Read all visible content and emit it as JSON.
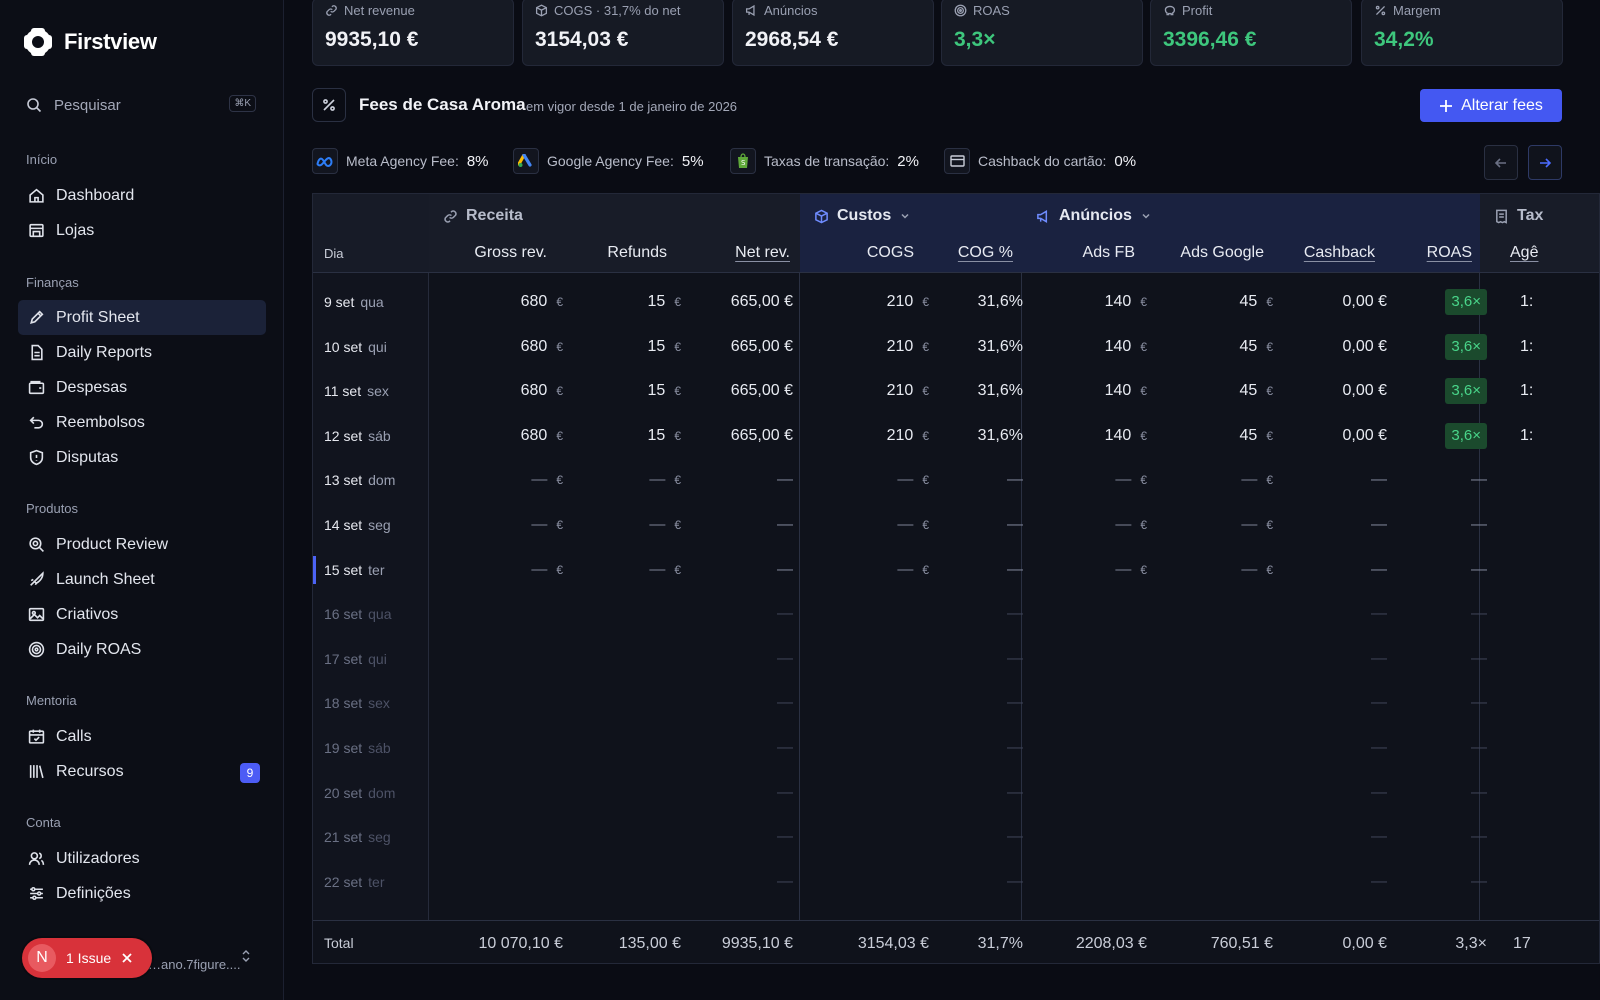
{
  "app": {
    "name": "Firstview"
  },
  "sidebar": {
    "search": {
      "label": "Pesquisar",
      "shortcut": "⌘K"
    },
    "sections": {
      "inicio": "Início",
      "financas": "Finanças",
      "produtos": "Produtos",
      "mentoria": "Mentoria",
      "conta": "Conta"
    },
    "items": {
      "dashboard": "Dashboard",
      "lojas": "Lojas",
      "profit_sheet": "Profit Sheet",
      "daily_reports": "Daily Reports",
      "despesas": "Despesas",
      "reembolsos": "Reembolsos",
      "disputas": "Disputas",
      "product_review": "Product Review",
      "launch_sheet": "Launch Sheet",
      "criativos": "Criativos",
      "daily_roas": "Daily ROAS",
      "calls": "Calls",
      "recursos": "Recursos",
      "recursos_badge": "9",
      "utilizadores": "Utilizadores",
      "definicoes": "Definições"
    },
    "issue": {
      "avatar": "N",
      "label": "1 Issue"
    },
    "user_email": "…ano.7figure...."
  },
  "kpis": [
    {
      "label": "Net revenue",
      "value": "9935,10 €"
    },
    {
      "label": "COGS · 31,7% do net",
      "value": "3154,03 €"
    },
    {
      "label": "Anúncios",
      "value": "2968,54 €"
    },
    {
      "label": "ROAS",
      "value": "3,3×"
    },
    {
      "label": "Profit",
      "value": "3396,46 €"
    },
    {
      "label": "Margem",
      "value": "34,2%"
    }
  ],
  "fees": {
    "title": "Fees de Casa Aroma",
    "subtitle": "em vigor desde 1 de janeiro de 2026",
    "button": "Alterar fees",
    "chips": [
      {
        "label": "Meta Agency Fee:",
        "value": "8%"
      },
      {
        "label": "Google Agency Fee:",
        "value": "5%"
      },
      {
        "label": "Taxas de transação:",
        "value": "2%"
      },
      {
        "label": "Cashback do cartão:",
        "value": "0%"
      }
    ]
  },
  "table": {
    "groups": {
      "receita": "Receita",
      "custos": "Custos",
      "anuncios": "Anúncios",
      "tax": "Tax"
    },
    "columns": {
      "dia": "Dia",
      "gross": "Gross rev.",
      "refunds": "Refunds",
      "net": "Net rev.",
      "cogs": "COGS",
      "cog_pct": "COG %",
      "ads_fb": "Ads FB",
      "ads_google": "Ads Google",
      "cashback": "Cashback",
      "roas": "ROAS",
      "agencia": "Agê"
    },
    "currency": "€",
    "dash": "—",
    "rows": [
      {
        "day": "9 set",
        "wd": "qua",
        "gross": "680",
        "refunds": "15",
        "net": "665,00 €",
        "cogs": "210",
        "cog_pct": "31,6%",
        "ads_fb": "140",
        "ads_google": "45",
        "cashback": "0,00 €",
        "roas": "3,6×",
        "tax": "1:"
      },
      {
        "day": "10 set",
        "wd": "qui",
        "gross": "680",
        "refunds": "15",
        "net": "665,00 €",
        "cogs": "210",
        "cog_pct": "31,6%",
        "ads_fb": "140",
        "ads_google": "45",
        "cashback": "0,00 €",
        "roas": "3,6×",
        "tax": "1:"
      },
      {
        "day": "11 set",
        "wd": "sex",
        "gross": "680",
        "refunds": "15",
        "net": "665,00 €",
        "cogs": "210",
        "cog_pct": "31,6%",
        "ads_fb": "140",
        "ads_google": "45",
        "cashback": "0,00 €",
        "roas": "3,6×",
        "tax": "1:"
      },
      {
        "day": "12 set",
        "wd": "sáb",
        "gross": "680",
        "refunds": "15",
        "net": "665,00 €",
        "cogs": "210",
        "cog_pct": "31,6%",
        "ads_fb": "140",
        "ads_google": "45",
        "cashback": "0,00 €",
        "roas": "3,6×",
        "tax": "1:"
      },
      {
        "day": "13 set",
        "wd": "dom",
        "state": "empty"
      },
      {
        "day": "14 set",
        "wd": "seg",
        "state": "empty"
      },
      {
        "day": "15 set",
        "wd": "ter",
        "state": "empty",
        "today": true
      },
      {
        "day": "16 set",
        "wd": "qua",
        "state": "future"
      },
      {
        "day": "17 set",
        "wd": "qui",
        "state": "future"
      },
      {
        "day": "18 set",
        "wd": "sex",
        "state": "future"
      },
      {
        "day": "19 set",
        "wd": "sáb",
        "state": "future"
      },
      {
        "day": "20 set",
        "wd": "dom",
        "state": "future"
      },
      {
        "day": "21 set",
        "wd": "seg",
        "state": "future"
      },
      {
        "day": "22 set",
        "wd": "ter",
        "state": "future"
      }
    ],
    "total": {
      "label": "Total",
      "gross": "10 070,10 €",
      "refunds": "135,00 €",
      "net": "9935,10 €",
      "cogs": "3154,03 €",
      "cog_pct": "31,7%",
      "ads_fb": "2208,03 €",
      "ads_google": "760,51 €",
      "cashback": "0,00 €",
      "roas": "3,3×",
      "tax": "17"
    }
  }
}
